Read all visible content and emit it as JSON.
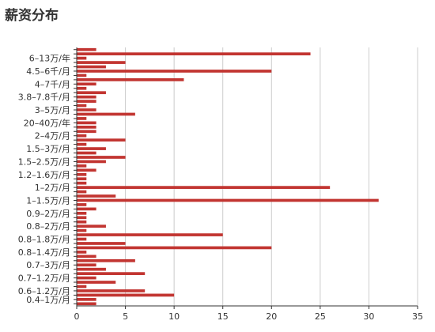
{
  "page": {
    "title": "薪资分布"
  },
  "chart_data": {
    "type": "bar",
    "orientation": "horizontal",
    "title": "薪资分布",
    "xlabel": "",
    "ylabel": "",
    "xlim": [
      0,
      35
    ],
    "x_ticks": [
      0,
      5,
      10,
      15,
      20,
      25,
      30,
      35
    ],
    "grid": "vertical",
    "legend": "none",
    "bar_color": "#c23531",
    "categories_bottom_to_top": [
      "",
      "0.4–1万/月",
      "",
      "0.6–1.2万/月",
      "",
      "",
      "0.7–1.2万/月",
      "",
      "",
      "0.7–3万/月",
      "",
      "",
      "0.8–1.4万/月",
      "",
      "",
      "0.8–1.8万/月",
      "",
      "",
      "0.8–2万/月",
      "",
      "",
      "0.9–2万/月",
      "",
      "",
      "1–1.5万/月",
      "",
      "",
      "1–2万/月",
      "",
      "",
      "1.2–1.6万/月",
      "",
      "",
      "1.5–2.5万/月",
      "",
      "",
      "1.5–3万/月",
      "",
      "",
      "2–4万/月",
      "",
      "",
      "20–40万/年",
      "",
      "",
      "3–5万/月",
      "",
      "",
      "3.8–7.8千/月",
      "",
      "",
      "4–7千/月",
      "",
      "",
      "4.5–6千/月",
      "",
      "",
      "6–13万/年",
      "",
      ""
    ],
    "values_bottom_to_top": [
      2,
      2,
      10,
      7,
      1,
      4,
      2,
      7,
      3,
      2,
      6,
      2,
      1,
      20,
      5,
      1,
      15,
      1,
      3,
      1,
      1,
      1,
      2,
      1,
      31,
      4,
      1,
      26,
      1,
      1,
      1,
      2,
      1,
      3,
      5,
      2,
      3,
      1,
      5,
      1,
      2,
      2,
      2,
      1,
      6,
      2,
      1,
      2,
      2,
      3,
      1,
      2,
      11,
      1,
      20,
      3,
      5,
      1,
      24,
      2
    ]
  }
}
